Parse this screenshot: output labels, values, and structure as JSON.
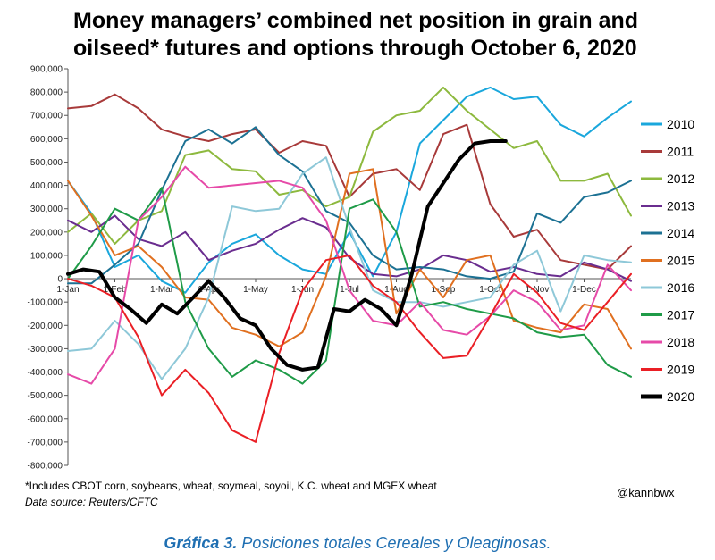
{
  "chart_data": {
    "type": "line",
    "title": "Money managers’ combined net position in grain and oilseed* futures and options through October 6, 2020",
    "xlabel": "",
    "ylabel": "",
    "ylim": [
      -800000,
      900000
    ],
    "xlim": [
      0,
      12
    ],
    "grid": false,
    "legend_position": "right",
    "y_ticks": [
      {
        "v": 900000,
        "label": "900,000"
      },
      {
        "v": 800000,
        "label": "800,000"
      },
      {
        "v": 700000,
        "label": "700,000"
      },
      {
        "v": 600000,
        "label": "600,000"
      },
      {
        "v": 500000,
        "label": "500,000"
      },
      {
        "v": 400000,
        "label": "400,000"
      },
      {
        "v": 300000,
        "label": "300,000"
      },
      {
        "v": 200000,
        "label": "200,000"
      },
      {
        "v": 100000,
        "label": "100,000"
      },
      {
        "v": 0,
        "label": "0"
      },
      {
        "v": -100000,
        "label": "-100,000"
      },
      {
        "v": -200000,
        "label": "-200,000"
      },
      {
        "v": -300000,
        "label": "-300,000"
      },
      {
        "v": -400000,
        "label": "-400,000"
      },
      {
        "v": -500000,
        "label": "-500,000"
      },
      {
        "v": -600000,
        "label": "-600,000"
      },
      {
        "v": -700000,
        "label": "-700,000"
      },
      {
        "v": -800000,
        "label": "-800,000"
      }
    ],
    "x_ticks": [
      {
        "v": 0,
        "label": "1-Jan"
      },
      {
        "v": 1,
        "label": "1-Feb"
      },
      {
        "v": 2,
        "label": "1-Mar"
      },
      {
        "v": 3,
        "label": "1-Apr"
      },
      {
        "v": 4,
        "label": "1-May"
      },
      {
        "v": 5,
        "label": "1-Jun"
      },
      {
        "v": 6,
        "label": "1-Jul"
      },
      {
        "v": 7,
        "label": "1-Aug"
      },
      {
        "v": 8,
        "label": "1-Sep"
      },
      {
        "v": 9,
        "label": "1-Oct"
      },
      {
        "v": 10,
        "label": "1-Nov"
      },
      {
        "v": 11,
        "label": "1-Dec"
      }
    ],
    "series": [
      {
        "name": "2010",
        "color": "#1aa7dc",
        "width": 2,
        "x": [
          0,
          0.5,
          1,
          1.5,
          2,
          2.5,
          3,
          3.5,
          4,
          4.5,
          5,
          5.5,
          6,
          6.5,
          7,
          7.5,
          8,
          8.5,
          9,
          9.5,
          10,
          10.5,
          11,
          11.5,
          12
        ],
        "y": [
          420000,
          280000,
          50000,
          100000,
          -10000,
          -60000,
          70000,
          150000,
          190000,
          100000,
          40000,
          20000,
          200000,
          10000,
          200000,
          580000,
          680000,
          780000,
          820000,
          770000,
          780000,
          660000,
          610000,
          690000,
          760000
        ]
      },
      {
        "name": "2011",
        "color": "#a83a3a",
        "width": 2,
        "x": [
          0,
          0.5,
          1,
          1.5,
          2,
          2.5,
          3,
          3.5,
          4,
          4.5,
          5,
          5.5,
          6,
          6.5,
          7,
          7.5,
          8,
          8.5,
          9,
          9.5,
          10,
          10.5,
          11,
          11.5,
          12
        ],
        "y": [
          730000,
          740000,
          790000,
          730000,
          640000,
          610000,
          590000,
          620000,
          640000,
          540000,
          590000,
          570000,
          350000,
          450000,
          470000,
          380000,
          620000,
          660000,
          320000,
          180000,
          210000,
          80000,
          60000,
          40000,
          140000
        ]
      },
      {
        "name": "2012",
        "color": "#8db93e",
        "width": 2,
        "x": [
          0,
          0.5,
          1,
          1.5,
          2,
          2.5,
          3,
          3.5,
          4,
          4.5,
          5,
          5.5,
          6,
          6.5,
          7,
          7.5,
          8,
          8.5,
          9,
          9.5,
          10,
          10.5,
          11,
          11.5,
          12
        ],
        "y": [
          200000,
          280000,
          150000,
          250000,
          290000,
          530000,
          550000,
          470000,
          460000,
          360000,
          380000,
          310000,
          350000,
          630000,
          700000,
          720000,
          820000,
          720000,
          640000,
          560000,
          590000,
          420000,
          420000,
          450000,
          270000
        ]
      },
      {
        "name": "2013",
        "color": "#6a2d8f",
        "width": 2,
        "x": [
          0,
          0.5,
          1,
          1.5,
          2,
          2.5,
          3,
          3.5,
          4,
          4.5,
          5,
          5.5,
          6,
          6.5,
          7,
          7.5,
          8,
          8.5,
          9,
          9.5,
          10,
          10.5,
          11,
          11.5,
          12
        ],
        "y": [
          250000,
          200000,
          270000,
          170000,
          140000,
          200000,
          80000,
          120000,
          150000,
          210000,
          260000,
          220000,
          90000,
          20000,
          10000,
          40000,
          100000,
          80000,
          30000,
          50000,
          20000,
          10000,
          70000,
          40000,
          -10000
        ]
      },
      {
        "name": "2014",
        "color": "#1c7193",
        "width": 2,
        "x": [
          0,
          0.5,
          1,
          1.5,
          2,
          2.5,
          3,
          3.5,
          4,
          4.5,
          5,
          5.5,
          6,
          6.5,
          7,
          7.5,
          8,
          8.5,
          9,
          9.5,
          10,
          10.5,
          11,
          11.5,
          12
        ],
        "y": [
          -20000,
          -20000,
          60000,
          150000,
          380000,
          590000,
          640000,
          580000,
          650000,
          530000,
          460000,
          290000,
          240000,
          100000,
          40000,
          50000,
          40000,
          10000,
          0,
          30000,
          280000,
          240000,
          350000,
          370000,
          420000
        ]
      },
      {
        "name": "2015",
        "color": "#e07020",
        "width": 2,
        "x": [
          0,
          0.5,
          1,
          1.5,
          2,
          2.5,
          3,
          3.5,
          4,
          4.5,
          5,
          5.5,
          6,
          6.5,
          7,
          7.5,
          8,
          8.5,
          9,
          9.5,
          10,
          10.5,
          11,
          11.5,
          12
        ],
        "y": [
          420000,
          270000,
          100000,
          140000,
          50000,
          -80000,
          -90000,
          -210000,
          -240000,
          -290000,
          -230000,
          10000,
          450000,
          470000,
          -150000,
          40000,
          -80000,
          80000,
          100000,
          -180000,
          -210000,
          -230000,
          -110000,
          -130000,
          -300000
        ]
      },
      {
        "name": "2016",
        "color": "#8ec8d8",
        "width": 2,
        "x": [
          0,
          0.5,
          1,
          1.5,
          2,
          2.5,
          3,
          3.5,
          4,
          4.5,
          5,
          5.5,
          6,
          6.5,
          7,
          7.5,
          8,
          8.5,
          9,
          9.5,
          10,
          10.5,
          11,
          11.5,
          12
        ],
        "y": [
          -310000,
          -300000,
          -180000,
          -280000,
          -430000,
          -300000,
          -80000,
          310000,
          290000,
          300000,
          450000,
          520000,
          220000,
          -50000,
          -100000,
          -100000,
          -120000,
          -100000,
          -80000,
          60000,
          120000,
          -140000,
          100000,
          80000,
          70000
        ]
      },
      {
        "name": "2017",
        "color": "#1f9b48",
        "width": 2,
        "x": [
          0,
          0.5,
          1,
          1.5,
          2,
          2.5,
          3,
          3.5,
          4,
          4.5,
          5,
          5.5,
          6,
          6.5,
          7,
          7.5,
          8,
          8.5,
          9,
          9.5,
          10,
          10.5,
          11,
          11.5,
          12
        ],
        "y": [
          0,
          140000,
          300000,
          250000,
          390000,
          -100000,
          -300000,
          -420000,
          -350000,
          -390000,
          -450000,
          -350000,
          300000,
          340000,
          200000,
          -120000,
          -100000,
          -130000,
          -150000,
          -170000,
          -230000,
          -250000,
          -240000,
          -370000,
          -420000
        ]
      },
      {
        "name": "2018",
        "color": "#e64aa8",
        "width": 2,
        "x": [
          0,
          0.5,
          1,
          1.5,
          2,
          2.5,
          3,
          3.5,
          4,
          4.5,
          5,
          5.5,
          6,
          6.5,
          7,
          7.5,
          8,
          8.5,
          9,
          9.5,
          10,
          10.5,
          11,
          11.5,
          12
        ],
        "y": [
          -410000,
          -450000,
          -300000,
          250000,
          350000,
          480000,
          390000,
          400000,
          410000,
          420000,
          390000,
          250000,
          -50000,
          -180000,
          -200000,
          -100000,
          -220000,
          -240000,
          -160000,
          -50000,
          -100000,
          -220000,
          -200000,
          60000,
          -50000
        ]
      },
      {
        "name": "2019",
        "color": "#ea1f25",
        "width": 2,
        "x": [
          0,
          0.5,
          1,
          1.5,
          2,
          2.5,
          3,
          3.5,
          4,
          4.5,
          5,
          5.5,
          6,
          6.5,
          7,
          7.5,
          8,
          8.5,
          9,
          9.5,
          10,
          10.5,
          11,
          11.5,
          12
        ],
        "y": [
          0,
          -30000,
          -80000,
          -250000,
          -500000,
          -390000,
          -490000,
          -650000,
          -700000,
          -320000,
          -50000,
          80000,
          100000,
          -30000,
          -100000,
          -230000,
          -340000,
          -330000,
          -160000,
          20000,
          -60000,
          -190000,
          -220000,
          -100000,
          20000
        ]
      },
      {
        "name": "2020",
        "color": "#000000",
        "width": 4,
        "x": [
          0,
          0.33,
          0.67,
          1,
          1.33,
          1.67,
          2,
          2.33,
          2.67,
          3,
          3.33,
          3.67,
          4,
          4.33,
          4.67,
          5,
          5.33,
          5.67,
          6,
          6.33,
          6.67,
          7,
          7.33,
          7.67,
          8,
          8.33,
          8.67,
          9,
          9.33
        ],
        "y": [
          20000,
          40000,
          30000,
          -80000,
          -130000,
          -190000,
          -110000,
          -150000,
          -80000,
          -10000,
          -80000,
          -170000,
          -200000,
          -300000,
          -370000,
          -390000,
          -380000,
          -130000,
          -140000,
          -90000,
          -130000,
          -200000,
          20000,
          310000,
          410000,
          510000,
          580000,
          590000,
          590000
        ]
      }
    ]
  },
  "footnote": "*Includes CBOT corn, soybeans, wheat, soymeal, soyoil, K.C. wheat and MGEX wheat",
  "source": "Data source: Reuters/CFTC",
  "handle": "@kannbwx",
  "caption": {
    "bold": "Gráfica 3.",
    "text": " Posiciones totales Cereales y Oleaginosas."
  }
}
